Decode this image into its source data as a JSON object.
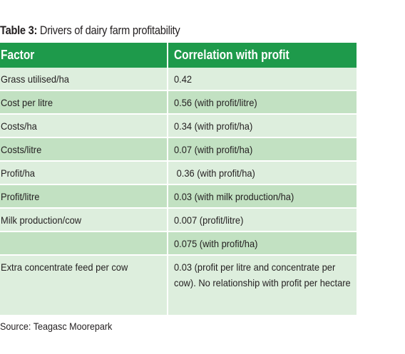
{
  "caption": {
    "label": "Table 3:",
    "text": " Drivers of dairy farm profitability"
  },
  "table": {
    "headers": [
      "Factor",
      "Correlation with profit"
    ],
    "rows": [
      {
        "factor": "Grass utilised/ha",
        "correlation": "0.42"
      },
      {
        "factor": "Cost per litre",
        "correlation": "0.56 (with profit/litre)"
      },
      {
        "factor": "Costs/ha",
        "correlation": "0.34 (with profit/ha)"
      },
      {
        "factor": "Costs/litre",
        "correlation": "0.07 (with profit/ha)"
      },
      {
        "factor": "Profit/ha",
        "correlation": " 0.36 (with profit/ha)"
      },
      {
        "factor": "Profit/litre",
        "correlation": "0.03 (with milk production/ha)"
      },
      {
        "factor": "Milk production/cow",
        "correlation": "0.007 (profit/litre)"
      },
      {
        "factor": "",
        "correlation": "0.075 (with profit/ha)"
      },
      {
        "factor": "Extra concentrate feed per cow",
        "correlation": "0.03 (profit per litre and concentrate per cow). No relationship with profit per hectare"
      }
    ]
  },
  "source": "Source: Teagasc Moorepark",
  "colors": {
    "header_bg": "#1e9a4b",
    "row_light": "#ddeedd",
    "row_mid": "#c2e1c2"
  }
}
